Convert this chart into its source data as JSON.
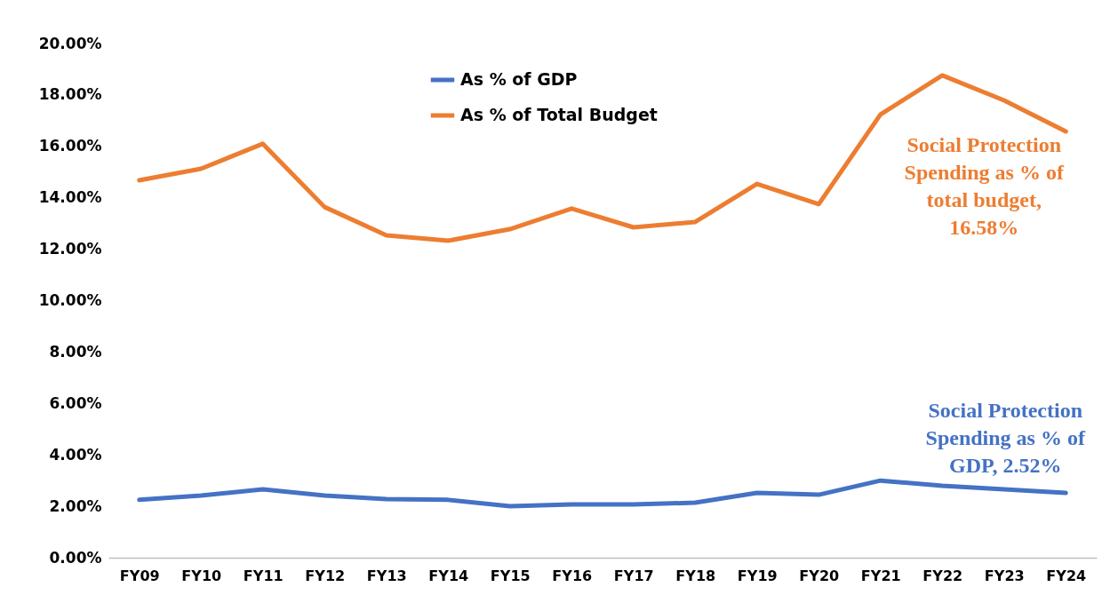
{
  "chart_data": {
    "type": "line",
    "categories": [
      "FY09",
      "FY10",
      "FY11",
      "FY12",
      "FY13",
      "FY14",
      "FY15",
      "FY16",
      "FY17",
      "FY18",
      "FY19",
      "FY20",
      "FY21",
      "FY22",
      "FY23",
      "FY24"
    ],
    "series": [
      {
        "name": "As % of GDP",
        "color": "#4472c4",
        "values": [
          2.25,
          2.42,
          2.66,
          2.42,
          2.28,
          2.25,
          2.0,
          2.07,
          2.07,
          2.14,
          2.52,
          2.45,
          3.0,
          2.8,
          2.66,
          2.52
        ]
      },
      {
        "name": "As % of Total Budget",
        "color": "#ed7d31",
        "values": [
          14.68,
          15.13,
          16.1,
          13.64,
          12.54,
          12.33,
          12.78,
          13.58,
          12.85,
          13.06,
          14.54,
          13.75,
          17.24,
          18.76,
          17.79,
          16.58
        ]
      }
    ],
    "ylim": [
      0,
      20
    ],
    "yticks": [
      {
        "value": 0,
        "label": "0.00%"
      },
      {
        "value": 2,
        "label": "2.00%"
      },
      {
        "value": 4,
        "label": "4.00%"
      },
      {
        "value": 6,
        "label": "6.00%"
      },
      {
        "value": 8,
        "label": "8.00%"
      },
      {
        "value": 10,
        "label": "10.00%"
      },
      {
        "value": 12,
        "label": "12.00%"
      },
      {
        "value": 14,
        "label": "14.00%"
      },
      {
        "value": 16,
        "label": "16.00%"
      },
      {
        "value": 18,
        "label": "18.00%"
      },
      {
        "value": 20,
        "label": "20.00%"
      }
    ],
    "grid": false,
    "legend": "top",
    "marker": "none",
    "line_style": "solid",
    "annotations": [
      {
        "text": "Social Protection Spending as % of total budget, 16.58%",
        "x": "FY24",
        "y": 16.58
      },
      {
        "text": "Social Protection Spending as % of GDP, 2.52%",
        "x": "FY24",
        "y": 2.52
      }
    ]
  }
}
